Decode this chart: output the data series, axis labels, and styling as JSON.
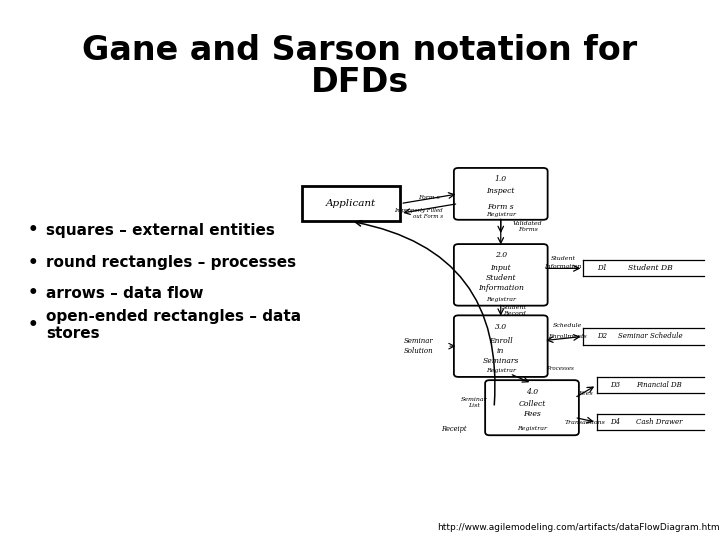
{
  "title_line1": "Gane and Sarson notation for",
  "title_line2": "DFDs",
  "title_fontsize": 24,
  "title_fontweight": "bold",
  "title_color": "#000000",
  "background_color": "#ffffff",
  "bullet_items": [
    "squares – external entities",
    "round rectangles – processes",
    "arrows – data flow",
    "open-ended rectangles – data\nstores"
  ],
  "bullet_fontsize": 11,
  "bullet_color": "#000000",
  "url_text": "http://www.agilemodeling.com/artifacts/dataFlowDiagram.htm",
  "url_fontsize": 6.5,
  "url_color": "#000000"
}
